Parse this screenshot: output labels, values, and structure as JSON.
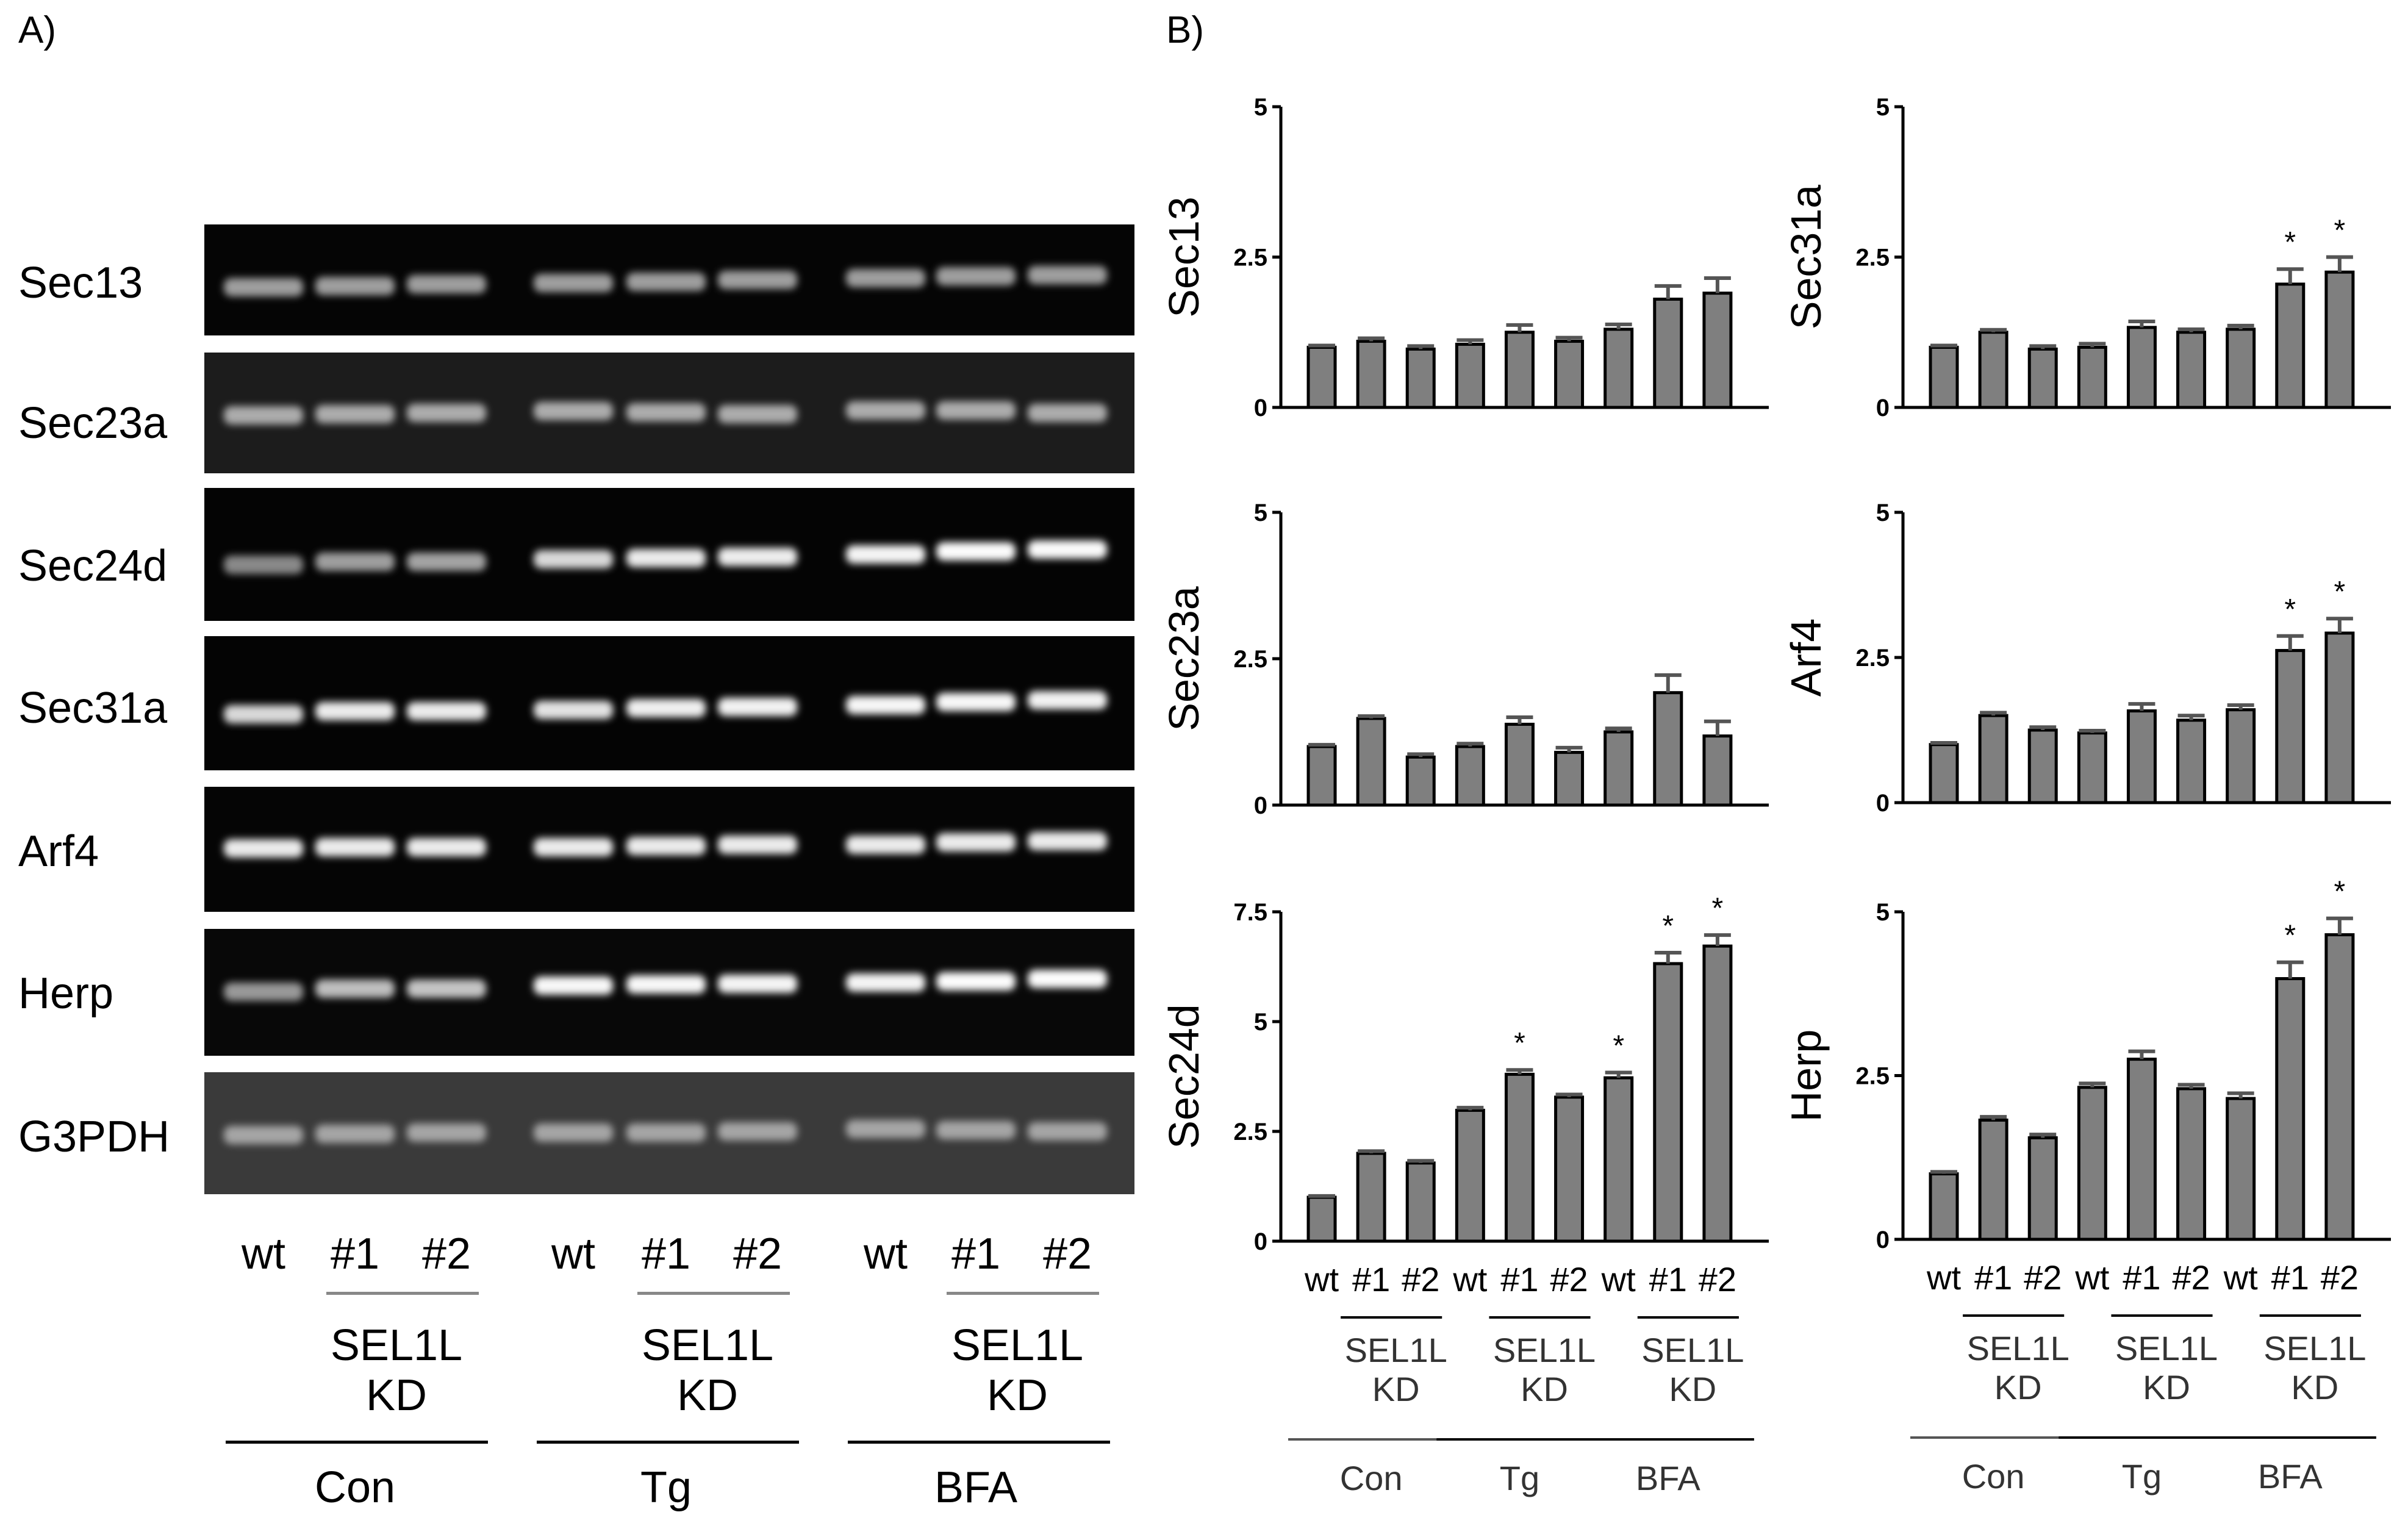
{
  "panel_a": {
    "letter": "A)",
    "genes": [
      "Sec13",
      "Sec23a",
      "Sec24d",
      "Sec31a",
      "Arf4",
      "Herp",
      "G3PDH"
    ],
    "lanes": [
      "wt",
      "#1",
      "#2",
      "wt",
      "#1",
      "#2",
      "wt",
      "#1",
      "#2"
    ],
    "kd_line1": "SEL1L",
    "kd_line2": "KD",
    "groups": [
      "Con",
      "Tg",
      "BFA"
    ]
  },
  "panel_b": {
    "letter": "B)"
  },
  "chart_data": [
    {
      "type": "bar",
      "ylabel": "Sec13",
      "ylim": [
        0,
        5
      ],
      "yticks": [
        "0",
        "2.5",
        "5"
      ],
      "categories": [
        "wt",
        "#1",
        "#2",
        "wt",
        "#1",
        "#2",
        "wt",
        "#1",
        "#2"
      ],
      "groups": [
        "Con",
        "Tg",
        "BFA"
      ],
      "kd_line1": "SEL1L",
      "kd_line2": "KD",
      "values": [
        1.0,
        1.1,
        0.97,
        1.05,
        1.25,
        1.1,
        1.3,
        1.8,
        1.9
      ],
      "errors": [
        0.03,
        0.05,
        0.05,
        0.07,
        0.12,
        0.06,
        0.08,
        0.22,
        0.25
      ],
      "significance": [
        "",
        "",
        "",
        "",
        "",
        "",
        "",
        "",
        ""
      ]
    },
    {
      "type": "bar",
      "ylabel": "Sec31a",
      "ylim": [
        0,
        5
      ],
      "yticks": [
        "0",
        "2.5",
        "5"
      ],
      "categories": [
        "wt",
        "#1",
        "#2",
        "wt",
        "#1",
        "#2",
        "wt",
        "#1",
        "#2"
      ],
      "groups": [
        "Con",
        "Tg",
        "BFA"
      ],
      "kd_line1": "SEL1L",
      "kd_line2": "KD",
      "values": [
        1.0,
        1.25,
        0.97,
        1.0,
        1.33,
        1.25,
        1.3,
        2.05,
        2.25
      ],
      "errors": [
        0.03,
        0.04,
        0.05,
        0.06,
        0.1,
        0.05,
        0.06,
        0.25,
        0.25
      ],
      "significance": [
        "",
        "",
        "",
        "",
        "",
        "",
        "",
        "*",
        "*"
      ]
    },
    {
      "type": "bar",
      "ylabel": "Sec23a",
      "ylim": [
        0,
        5
      ],
      "yticks": [
        "0",
        "2.5",
        "5"
      ],
      "categories": [
        "wt",
        "#1",
        "#2",
        "wt",
        "#1",
        "#2",
        "wt",
        "#1",
        "#2"
      ],
      "groups": [
        "Con",
        "Tg",
        "BFA"
      ],
      "kd_line1": "SEL1L",
      "kd_line2": "KD",
      "values": [
        1.0,
        1.48,
        0.82,
        1.0,
        1.38,
        0.9,
        1.25,
        1.92,
        1.18
      ],
      "errors": [
        0.03,
        0.04,
        0.05,
        0.05,
        0.12,
        0.08,
        0.06,
        0.3,
        0.25
      ],
      "significance": [
        "",
        "",
        "",
        "",
        "",
        "",
        "",
        "",
        ""
      ]
    },
    {
      "type": "bar",
      "ylabel": "Arf4",
      "ylim": [
        0,
        5
      ],
      "yticks": [
        "0",
        "2.5",
        "5"
      ],
      "categories": [
        "wt",
        "#1",
        "#2",
        "wt",
        "#1",
        "#2",
        "wt",
        "#1",
        "#2"
      ],
      "groups": [
        "Con",
        "Tg",
        "BFA"
      ],
      "kd_line1": "SEL1L",
      "kd_line2": "KD",
      "values": [
        1.0,
        1.5,
        1.25,
        1.2,
        1.58,
        1.42,
        1.6,
        2.62,
        2.92
      ],
      "errors": [
        0.03,
        0.05,
        0.05,
        0.04,
        0.12,
        0.08,
        0.08,
        0.25,
        0.25
      ],
      "significance": [
        "",
        "",
        "",
        "",
        "",
        "",
        "",
        "*",
        "*"
      ]
    },
    {
      "type": "bar",
      "ylabel": "Sec24d",
      "ylim": [
        0,
        7.5
      ],
      "yticks": [
        "0",
        "2.5",
        "5",
        "7.5"
      ],
      "categories": [
        "wt",
        "#1",
        "#2",
        "wt",
        "#1",
        "#2",
        "wt",
        "#1",
        "#2"
      ],
      "groups": [
        "Con",
        "Tg",
        "BFA"
      ],
      "kd_line1": "SEL1L",
      "kd_line2": "KD",
      "values": [
        1.0,
        2.0,
        1.78,
        2.98,
        3.8,
        3.28,
        3.72,
        6.32,
        6.72
      ],
      "errors": [
        0.03,
        0.05,
        0.05,
        0.06,
        0.1,
        0.06,
        0.12,
        0.25,
        0.25
      ],
      "significance": [
        "",
        "",
        "",
        "",
        "*",
        "",
        "*",
        "*",
        "*"
      ]
    },
    {
      "type": "bar",
      "ylabel": "Herp",
      "ylim": [
        0,
        5
      ],
      "yticks": [
        "0",
        "2.5",
        "5"
      ],
      "categories": [
        "wt",
        "#1",
        "#2",
        "wt",
        "#1",
        "#2",
        "wt",
        "#1",
        "#2"
      ],
      "groups": [
        "Con",
        "Tg",
        "BFA"
      ],
      "kd_line1": "SEL1L",
      "kd_line2": "KD",
      "values": [
        1.0,
        1.82,
        1.55,
        2.32,
        2.75,
        2.3,
        2.15,
        3.98,
        4.65
      ],
      "errors": [
        0.03,
        0.05,
        0.05,
        0.06,
        0.12,
        0.06,
        0.08,
        0.25,
        0.25
      ],
      "significance": [
        "",
        "",
        "",
        "",
        "",
        "",
        "",
        "*",
        "*"
      ]
    }
  ]
}
